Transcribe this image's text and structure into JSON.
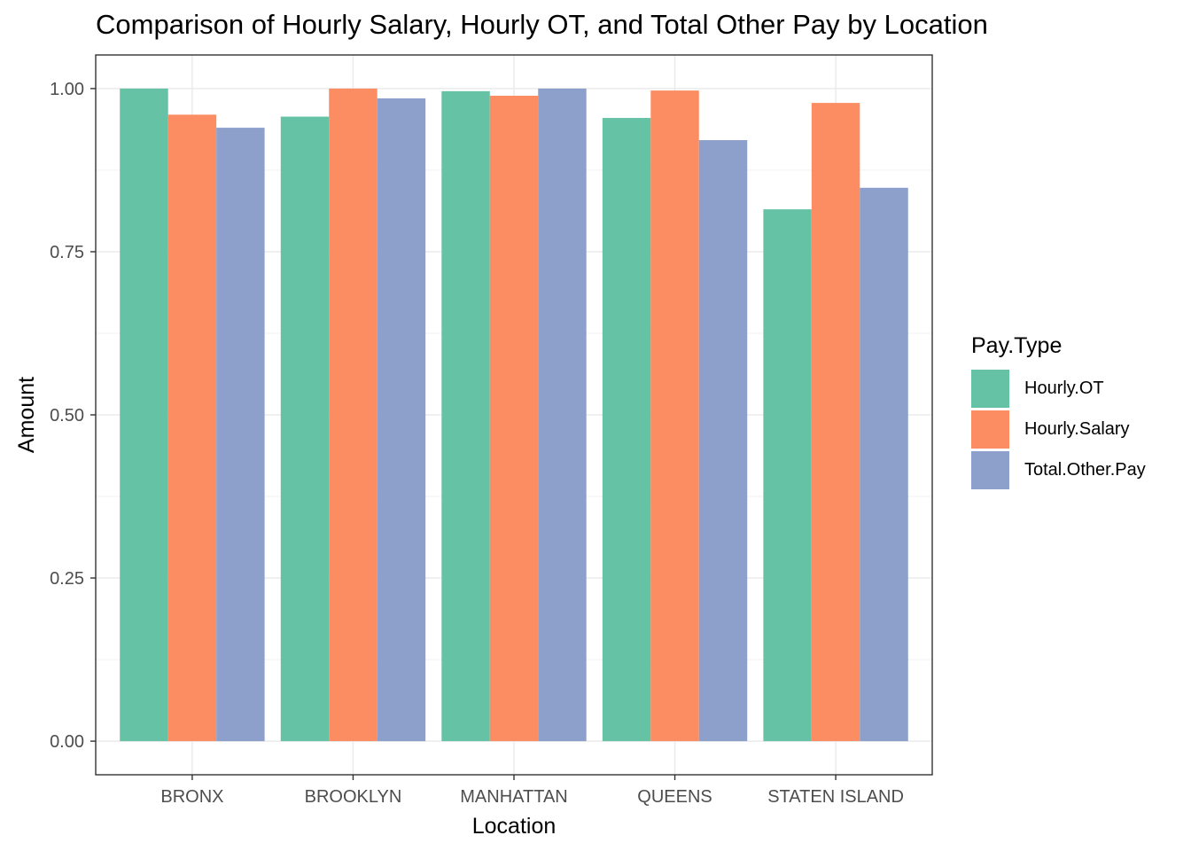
{
  "chart_data": {
    "type": "bar",
    "title": "Comparison of Hourly Salary, Hourly OT, and Total Other Pay by Location",
    "xlabel": "Location",
    "ylabel": "Amount",
    "categories": [
      "BRONX",
      "BROOKLYN",
      "MANHATTAN",
      "QUEENS",
      "STATEN ISLAND"
    ],
    "series": [
      {
        "name": "Hourly.OT",
        "color": "#66c2a5",
        "values": [
          1.0,
          0.957,
          0.996,
          0.955,
          0.815
        ]
      },
      {
        "name": "Hourly.Salary",
        "color": "#fc8d62",
        "values": [
          0.96,
          1.0,
          0.989,
          0.997,
          0.978
        ]
      },
      {
        "name": "Total.Other.Pay",
        "color": "#8da0cb",
        "values": [
          0.94,
          0.985,
          1.0,
          0.921,
          0.848
        ]
      }
    ],
    "ylim": [
      -0.0515,
      1.0515
    ],
    "yticks": [
      "0.00",
      "0.25",
      "0.50",
      "0.75",
      "1.00"
    ],
    "grid": true,
    "legend_title": "Pay.Type",
    "legend_position": "right"
  }
}
